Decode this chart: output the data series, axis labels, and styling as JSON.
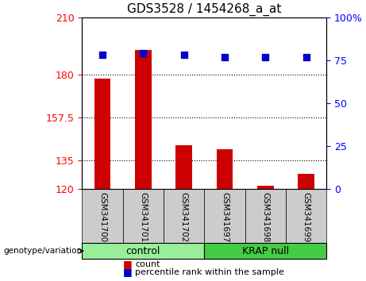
{
  "title": "GDS3528 / 1454268_a_at",
  "samples": [
    "GSM341700",
    "GSM341701",
    "GSM341702",
    "GSM341697",
    "GSM341698",
    "GSM341699"
  ],
  "groups": [
    "control",
    "control",
    "control",
    "KRAP null",
    "KRAP null",
    "KRAP null"
  ],
  "count_values": [
    178,
    193,
    143,
    141,
    122,
    128
  ],
  "percentile_values": [
    78,
    79,
    78,
    77,
    77,
    77
  ],
  "ylim_left": [
    120,
    210
  ],
  "ylim_right": [
    0,
    100
  ],
  "yticks_left": [
    120,
    135,
    157.5,
    180,
    210
  ],
  "ytick_labels_left": [
    "120",
    "135",
    "157.5",
    "180",
    "210"
  ],
  "yticks_right": [
    0,
    25,
    50,
    75,
    100
  ],
  "ytick_labels_right": [
    "0",
    "25",
    "50",
    "75",
    "100%"
  ],
  "bar_color": "#cc0000",
  "scatter_color": "#0000cc",
  "grid_color": "#000000",
  "bg_color_plot": "#ffffff",
  "bg_color_xlabel": "#cccccc",
  "bg_color_control": "#99ee99",
  "bg_color_krap": "#44cc44",
  "group_label_fontsize": 9,
  "title_fontsize": 11,
  "tick_fontsize": 9,
  "legend_fontsize": 8,
  "bar_width": 0.4,
  "base_value": 120
}
